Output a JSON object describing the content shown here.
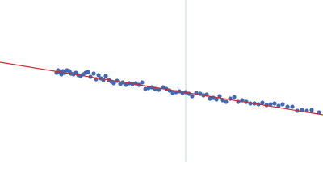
{
  "chart_data": {
    "type": "scatter",
    "xlim": [
      0,
      400
    ],
    "ylim": [
      200,
      0
    ],
    "vline": 230,
    "vline_color": "#c9d5ea",
    "series": [
      {
        "type": "scatter",
        "color": "#3f69b3",
        "x": [
          70,
          72,
          74,
          76,
          78,
          80,
          83,
          86,
          88,
          91,
          94,
          97,
          100,
          103,
          106,
          109,
          112,
          116,
          119,
          122,
          125,
          128,
          131,
          135,
          138,
          141,
          145,
          149,
          152,
          156,
          160,
          164,
          168,
          172,
          176,
          180,
          184,
          188,
          192,
          197,
          202,
          206,
          210,
          214,
          218,
          222,
          226,
          230,
          234,
          238,
          243,
          248,
          252,
          256,
          260,
          264,
          268,
          272,
          276,
          280,
          285,
          290,
          295,
          300,
          305,
          310,
          315,
          320,
          325,
          330,
          335,
          340,
          345,
          350,
          356,
          362,
          368,
          374,
          380,
          386,
          395
        ],
        "values": [
          90,
          87,
          89,
          92,
          88,
          90,
          87,
          88,
          91,
          92,
          90,
          93,
          94,
          92,
          90,
          89,
          95,
          91,
          98,
          93,
          97,
          99,
          94,
          99,
          101,
          103,
          100,
          104,
          102,
          105,
          103,
          104,
          103,
          105,
          102,
          110,
          109,
          108,
          110,
          111,
          108,
          110,
          112,
          115,
          114,
          113,
          115,
          114,
          116,
          119,
          115,
          116,
          118,
          117,
          122,
          121,
          123,
          119,
          124,
          126,
          122,
          120,
          126,
          124,
          126,
          128,
          128,
          129,
          127,
          130,
          129,
          128,
          131,
          129,
          132,
          132,
          137,
          136,
          137,
          136,
          139
        ]
      },
      {
        "type": "line",
        "color": "#d12a2a",
        "x": [
          0,
          400
        ],
        "values": [
          77,
          142
        ]
      }
    ]
  }
}
